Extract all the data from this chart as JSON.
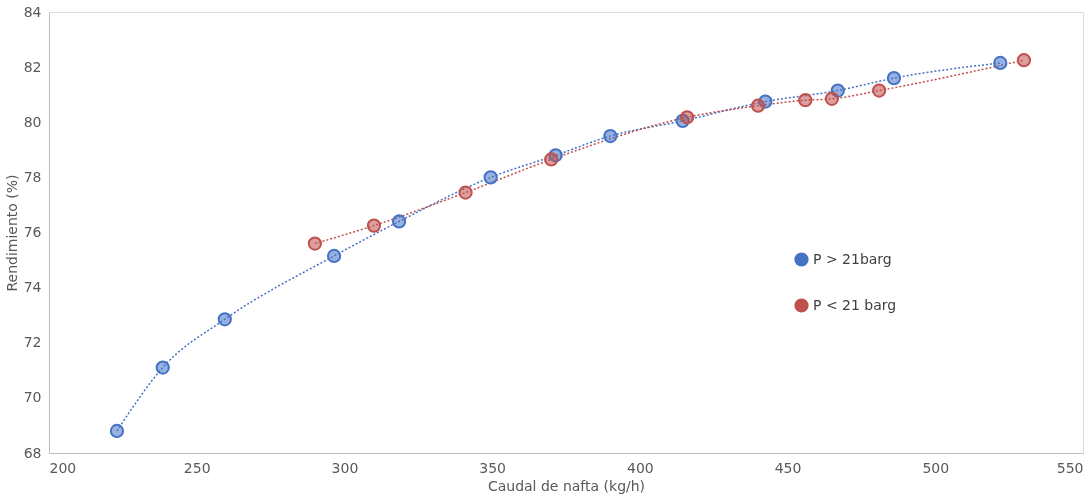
{
  "chart_data": {
    "type": "line",
    "xlabel": "Caudal de nafta (kg/h)",
    "ylabel": "Rendimiento (%)",
    "xlim": [
      200,
      550
    ],
    "xticks": [
      200,
      250,
      300,
      350,
      400,
      450,
      500,
      550
    ],
    "ylim": [
      68,
      84
    ],
    "yticks": [
      68,
      70,
      72,
      74,
      76,
      78,
      80,
      82,
      84
    ],
    "grid": false,
    "legend": "right",
    "marker": "circle",
    "line_style": "dotted",
    "series": [
      {
        "name": "P > 21barg",
        "color": "#4472c4",
        "x": [
          223,
          238.5,
          259.5,
          296.5,
          318.5,
          349.5,
          371.5,
          390,
          414.5,
          442.5,
          467,
          486,
          522
        ],
        "values": [
          68.8,
          71.1,
          72.85,
          75.15,
          76.4,
          78.0,
          78.8,
          79.5,
          80.05,
          80.75,
          81.15,
          81.6,
          82.15
        ]
      },
      {
        "name": "P < 21 barg",
        "color": "#c0504d",
        "x": [
          290,
          310,
          341,
          370,
          416,
          440,
          456,
          465,
          481,
          530
        ],
        "values": [
          75.6,
          76.25,
          77.45,
          78.65,
          80.18,
          80.6,
          80.8,
          80.85,
          81.15,
          82.25
        ]
      }
    ]
  }
}
